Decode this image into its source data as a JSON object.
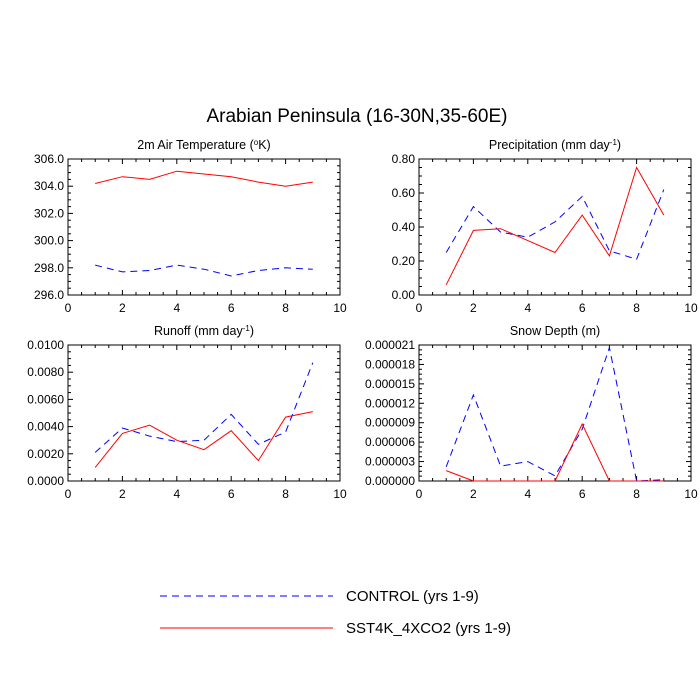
{
  "figure": {
    "title": "Arabian Peninsula (16-30N,35-60E)"
  },
  "legend": {
    "entries": [
      {
        "label": "CONTROL (yrs 1-9)",
        "color": "#0000ff",
        "dash": "dashed"
      },
      {
        "label": "SST4K_4XCO2 (yrs 1-9)",
        "color": "#ff0000",
        "dash": "solid"
      }
    ]
  },
  "chart_data": [
    {
      "type": "line",
      "title_parts": [
        "2m Air Temperature (",
        "o",
        "K)"
      ],
      "xlim": [
        0,
        10
      ],
      "ylim": [
        296.0,
        306.0
      ],
      "x_ticks": [
        "0",
        "2",
        "4",
        "6",
        "8",
        "10"
      ],
      "y_ticks": [
        {
          "value": 296.0,
          "label": "296.0"
        },
        {
          "value": 298.0,
          "label": "298.0"
        },
        {
          "value": 300.0,
          "label": "300.0"
        },
        {
          "value": 302.0,
          "label": "302.0"
        },
        {
          "value": 304.0,
          "label": "304.0"
        },
        {
          "value": 306.0,
          "label": "306.0"
        }
      ],
      "x": [
        1,
        2,
        3,
        4,
        5,
        6,
        7,
        8,
        9
      ],
      "series": [
        {
          "name": "CONTROL (yrs 1-9)",
          "color": "#0000ff",
          "dash": "dashed",
          "values": [
            298.2,
            297.7,
            297.8,
            298.2,
            297.9,
            297.4,
            297.8,
            298.0,
            297.9
          ]
        },
        {
          "name": "SST4K_4XCO2 (yrs 1-9)",
          "color": "#ff0000",
          "dash": "solid",
          "values": [
            304.2,
            304.7,
            304.5,
            305.1,
            304.9,
            304.7,
            304.3,
            304.0,
            304.3
          ]
        }
      ]
    },
    {
      "type": "line",
      "title_parts": [
        "Precipitation (mm day",
        "-1",
        ")"
      ],
      "xlim": [
        0,
        10
      ],
      "ylim": [
        0.0,
        0.8
      ],
      "x_ticks": [
        "0",
        "2",
        "4",
        "6",
        "8",
        "10"
      ],
      "y_ticks": [
        {
          "value": 0.0,
          "label": "0.00"
        },
        {
          "value": 0.2,
          "label": "0.20"
        },
        {
          "value": 0.4,
          "label": "0.40"
        },
        {
          "value": 0.6,
          "label": "0.60"
        },
        {
          "value": 0.8,
          "label": "0.80"
        }
      ],
      "x": [
        1,
        2,
        3,
        4,
        5,
        6,
        7,
        8,
        9
      ],
      "series": [
        {
          "name": "CONTROL (yrs 1-9)",
          "color": "#0000ff",
          "dash": "dashed",
          "values": [
            0.25,
            0.52,
            0.37,
            0.34,
            0.43,
            0.58,
            0.26,
            0.21,
            0.62
          ]
        },
        {
          "name": "SST4K_4XCO2 (yrs 1-9)",
          "color": "#ff0000",
          "dash": "solid",
          "values": [
            0.06,
            0.38,
            0.39,
            0.32,
            0.25,
            0.47,
            0.23,
            0.75,
            0.47
          ]
        }
      ]
    },
    {
      "type": "line",
      "title_parts": [
        "Runoff (mm day",
        "-1",
        ")"
      ],
      "xlim": [
        0,
        10
      ],
      "ylim": [
        0.0,
        0.01
      ],
      "x_ticks": [
        "0",
        "2",
        "4",
        "6",
        "8",
        "10"
      ],
      "y_ticks": [
        {
          "value": 0.0,
          "label": "0.0000"
        },
        {
          "value": 0.002,
          "label": "0.0020"
        },
        {
          "value": 0.004,
          "label": "0.0040"
        },
        {
          "value": 0.006,
          "label": "0.0060"
        },
        {
          "value": 0.008,
          "label": "0.0080"
        },
        {
          "value": 0.01,
          "label": "0.0100"
        }
      ],
      "x": [
        1,
        2,
        3,
        4,
        5,
        6,
        7,
        8,
        9
      ],
      "series": [
        {
          "name": "CONTROL (yrs 1-9)",
          "color": "#0000ff",
          "dash": "dashed",
          "values": [
            0.0021,
            0.0039,
            0.0033,
            0.0029,
            0.003,
            0.0049,
            0.0027,
            0.0036,
            0.0087
          ]
        },
        {
          "name": "SST4K_4XCO2 (yrs 1-9)",
          "color": "#ff0000",
          "dash": "solid",
          "values": [
            0.001,
            0.0035,
            0.0041,
            0.003,
            0.0023,
            0.0037,
            0.0015,
            0.0047,
            0.0051
          ]
        }
      ]
    },
    {
      "type": "line",
      "title_parts": [
        "Snow Depth (m)"
      ],
      "xlim": [
        0,
        10
      ],
      "ylim": [
        0.0,
        2.1e-05
      ],
      "x_ticks": [
        "0",
        "2",
        "4",
        "6",
        "8",
        "10"
      ],
      "y_ticks": [
        {
          "value": 0.0,
          "label": "0.000000"
        },
        {
          "value": 3e-06,
          "label": "0.000003"
        },
        {
          "value": 6e-06,
          "label": "0.000006"
        },
        {
          "value": 9e-06,
          "label": "0.000009"
        },
        {
          "value": 1.2e-05,
          "label": "0.000012"
        },
        {
          "value": 1.5e-05,
          "label": "0.000015"
        },
        {
          "value": 1.8e-05,
          "label": "0.000018"
        },
        {
          "value": 2.1e-05,
          "label": "0.000021"
        }
      ],
      "x": [
        1,
        2,
        3,
        4,
        5,
        6,
        7,
        8,
        9
      ],
      "series": [
        {
          "name": "CONTROL (yrs 1-9)",
          "color": "#0000ff",
          "dash": "dashed",
          "values": [
            2.2e-06,
            1.33e-05,
            2.3e-06,
            3e-06,
            8e-07,
            8e-06,
            2.06e-05,
            0.0,
            2e-07
          ]
        },
        {
          "name": "SST4K_4XCO2 (yrs 1-9)",
          "color": "#ff0000",
          "dash": "solid",
          "values": [
            1.6e-06,
            0.0,
            0.0,
            0.0,
            0.0,
            8.8e-06,
            0.0,
            0.0,
            0.0
          ]
        }
      ]
    }
  ]
}
